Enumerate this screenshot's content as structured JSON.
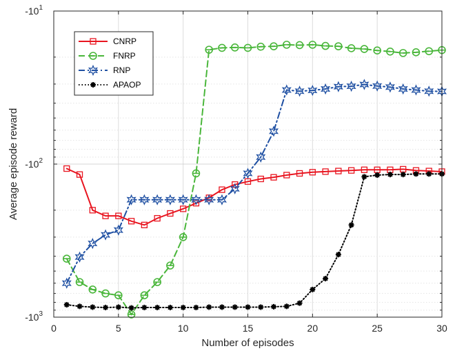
{
  "chart_data": {
    "type": "line",
    "xlabel": "Number of episodes",
    "ylabel": "Average episode reward",
    "xlim": [
      0,
      30
    ],
    "xticks": [
      0,
      5,
      10,
      15,
      20,
      25,
      30
    ],
    "yscale": "log (values negative; -10 at top, -1000 at bottom)",
    "ylim": [
      -1000,
      -10
    ],
    "yticks": [
      {
        "value": -10,
        "base": "-10",
        "exp": "1"
      },
      {
        "value": -100,
        "base": "-10",
        "exp": "2"
      },
      {
        "value": -1000,
        "base": "-10",
        "exp": "3"
      }
    ],
    "grid": true,
    "legend_position": "top-left",
    "x": [
      1,
      2,
      3,
      4,
      5,
      6,
      7,
      8,
      9,
      10,
      11,
      12,
      13,
      14,
      15,
      16,
      17,
      18,
      19,
      20,
      21,
      22,
      23,
      24,
      25,
      26,
      27,
      28,
      29,
      30
    ],
    "series": [
      {
        "name": "CNRP",
        "color": "#e8141f",
        "dash": "solid",
        "marker": "square",
        "values": [
          -107,
          -117,
          -200,
          -218,
          -218,
          -236,
          -250,
          -226,
          -210,
          -196,
          -180,
          -166,
          -147,
          -136,
          -130,
          -125,
          -122,
          -118,
          -115,
          -113,
          -112,
          -111,
          -110,
          -109,
          -109,
          -109,
          -108,
          -110,
          -111,
          -112
        ]
      },
      {
        "name": "FNRP",
        "color": "#49b63a",
        "dash": "dash",
        "marker": "circle",
        "values": [
          -415,
          -590,
          -660,
          -700,
          -720,
          -960,
          -720,
          -590,
          -460,
          -300,
          -115,
          -17.9,
          -17.4,
          -17.3,
          -17.4,
          -17.1,
          -17.0,
          -16.6,
          -16.7,
          -16.6,
          -16.9,
          -17.0,
          -17.5,
          -17.7,
          -18.1,
          -18.4,
          -18.8,
          -18.6,
          -18.3,
          -18.0
        ]
      },
      {
        "name": "RNP",
        "color": "#1e4fa2",
        "dash": "dashdot",
        "marker": "star",
        "values": [
          -600,
          -405,
          -330,
          -290,
          -270,
          -171,
          -171,
          -171,
          -171,
          -171,
          -171,
          -171,
          -171,
          -145,
          -115,
          -90,
          -61,
          -32.8,
          -33.4,
          -33.0,
          -32.3,
          -31.2,
          -31.0,
          -30.2,
          -30.9,
          -31.4,
          -32.3,
          -32.8,
          -33.4,
          -33.5
        ]
      },
      {
        "name": "APAOP",
        "color": "#000000",
        "dash": "dot",
        "marker": "asterisk",
        "values": [
          -830,
          -850,
          -860,
          -865,
          -860,
          -870,
          -865,
          -865,
          -865,
          -865,
          -865,
          -860,
          -860,
          -860,
          -860,
          -860,
          -855,
          -850,
          -810,
          -660,
          -560,
          -390,
          -250,
          -121,
          -118,
          -117,
          -117,
          -116,
          -116,
          -116
        ]
      }
    ]
  }
}
